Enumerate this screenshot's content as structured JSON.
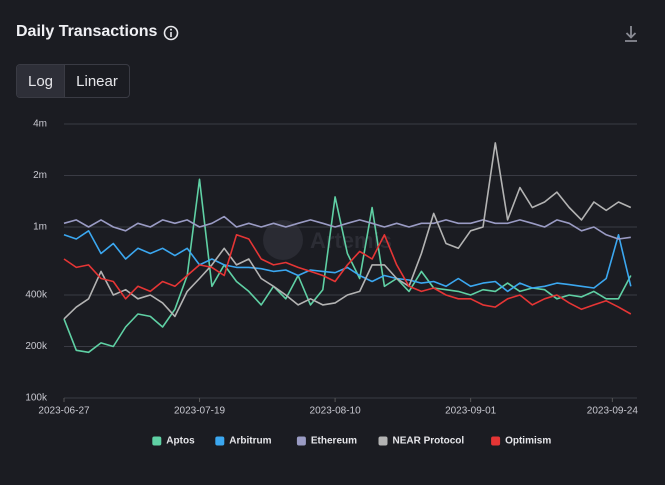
{
  "header": {
    "title": "Daily Transactions"
  },
  "controls": {
    "scale_options": [
      "Log",
      "Linear"
    ]
  },
  "watermark": "Artemis",
  "chart_data": {
    "type": "line",
    "log_scale": true,
    "grid": true,
    "legend": "bottom",
    "x": [
      "2023-06-27",
      "2023-06-29",
      "2023-07-01",
      "2023-07-03",
      "2023-07-05",
      "2023-07-07",
      "2023-07-09",
      "2023-07-11",
      "2023-07-13",
      "2023-07-15",
      "2023-07-17",
      "2023-07-19",
      "2023-07-21",
      "2023-07-23",
      "2023-07-25",
      "2023-07-27",
      "2023-07-29",
      "2023-07-31",
      "2023-08-02",
      "2023-08-04",
      "2023-08-06",
      "2023-08-08",
      "2023-08-10",
      "2023-08-12",
      "2023-08-14",
      "2023-08-16",
      "2023-08-18",
      "2023-08-20",
      "2023-08-22",
      "2023-08-24",
      "2023-08-26",
      "2023-08-28",
      "2023-08-30",
      "2023-09-01",
      "2023-09-03",
      "2023-09-05",
      "2023-09-07",
      "2023-09-09",
      "2023-09-11",
      "2023-09-13",
      "2023-09-15",
      "2023-09-17",
      "2023-09-19",
      "2023-09-21",
      "2023-09-23",
      "2023-09-25",
      "2023-09-27"
    ],
    "xlim": [
      "2023-06-27",
      "2023-09-28"
    ],
    "xticks": [
      "2023-06-27",
      "2023-07-19",
      "2023-08-10",
      "2023-09-01",
      "2023-09-24"
    ],
    "ylim": [
      100000,
      4000000
    ],
    "yticks": [
      {
        "value": 100000,
        "label": "100k"
      },
      {
        "value": 200000,
        "label": "200k"
      },
      {
        "value": 400000,
        "label": "400k"
      },
      {
        "value": 1000000,
        "label": "1m"
      },
      {
        "value": 2000000,
        "label": "2m"
      },
      {
        "value": 4000000,
        "label": "4m"
      }
    ],
    "series": [
      {
        "name": "Aptos",
        "color": "#5fd0a4",
        "values": [
          290000,
          190000,
          185000,
          210000,
          200000,
          260000,
          310000,
          300000,
          260000,
          330000,
          520000,
          1900000,
          450000,
          600000,
          480000,
          420000,
          350000,
          450000,
          380000,
          520000,
          350000,
          430000,
          1500000,
          700000,
          500000,
          1300000,
          450000,
          500000,
          420000,
          550000,
          440000,
          430000,
          420000,
          400000,
          430000,
          420000,
          470000,
          420000,
          440000,
          430000,
          380000,
          400000,
          390000,
          420000,
          380000,
          380000,
          520000
        ]
      },
      {
        "name": "Arbitrum",
        "color": "#3ba7f0",
        "values": [
          900000,
          850000,
          950000,
          700000,
          800000,
          650000,
          750000,
          700000,
          750000,
          680000,
          750000,
          600000,
          650000,
          600000,
          580000,
          580000,
          570000,
          550000,
          560000,
          520000,
          560000,
          550000,
          540000,
          580000,
          520000,
          480000,
          520000,
          500000,
          490000,
          470000,
          480000,
          450000,
          500000,
          450000,
          470000,
          480000,
          420000,
          470000,
          440000,
          450000,
          470000,
          460000,
          450000,
          440000,
          500000,
          900000,
          450000
        ]
      },
      {
        "name": "Ethereum",
        "color": "#9a9bc4",
        "values": [
          1050000,
          1100000,
          1000000,
          1100000,
          1000000,
          950000,
          1050000,
          1000000,
          1100000,
          1050000,
          1100000,
          1000000,
          1050000,
          1150000,
          1000000,
          1050000,
          1000000,
          1050000,
          1000000,
          1050000,
          1100000,
          1050000,
          1000000,
          1050000,
          1100000,
          1050000,
          1000000,
          1050000,
          1000000,
          1050000,
          1050000,
          1100000,
          1050000,
          1050000,
          1100000,
          1050000,
          1050000,
          1100000,
          1050000,
          1000000,
          1100000,
          1050000,
          950000,
          1000000,
          900000,
          850000,
          870000
        ]
      },
      {
        "name": "NEAR Protocol",
        "color": "#b3b3b3",
        "values": [
          290000,
          340000,
          380000,
          550000,
          400000,
          430000,
          380000,
          400000,
          360000,
          300000,
          420000,
          500000,
          600000,
          750000,
          600000,
          650000,
          500000,
          450000,
          400000,
          350000,
          380000,
          350000,
          360000,
          400000,
          420000,
          600000,
          600000,
          500000,
          450000,
          700000,
          1200000,
          800000,
          750000,
          950000,
          1000000,
          3100000,
          1100000,
          1700000,
          1300000,
          1400000,
          1600000,
          1300000,
          1100000,
          1400000,
          1250000,
          1400000,
          1300000
        ]
      },
      {
        "name": "Optimism",
        "color": "#e53535",
        "values": [
          650000,
          580000,
          600000,
          500000,
          480000,
          380000,
          450000,
          420000,
          480000,
          450000,
          520000,
          600000,
          580000,
          520000,
          900000,
          850000,
          650000,
          600000,
          620000,
          580000,
          550000,
          520000,
          480000,
          600000,
          720000,
          650000,
          900000,
          600000,
          450000,
          420000,
          440000,
          400000,
          380000,
          380000,
          350000,
          340000,
          380000,
          400000,
          350000,
          380000,
          400000,
          360000,
          330000,
          350000,
          370000,
          340000,
          310000
        ]
      }
    ]
  }
}
